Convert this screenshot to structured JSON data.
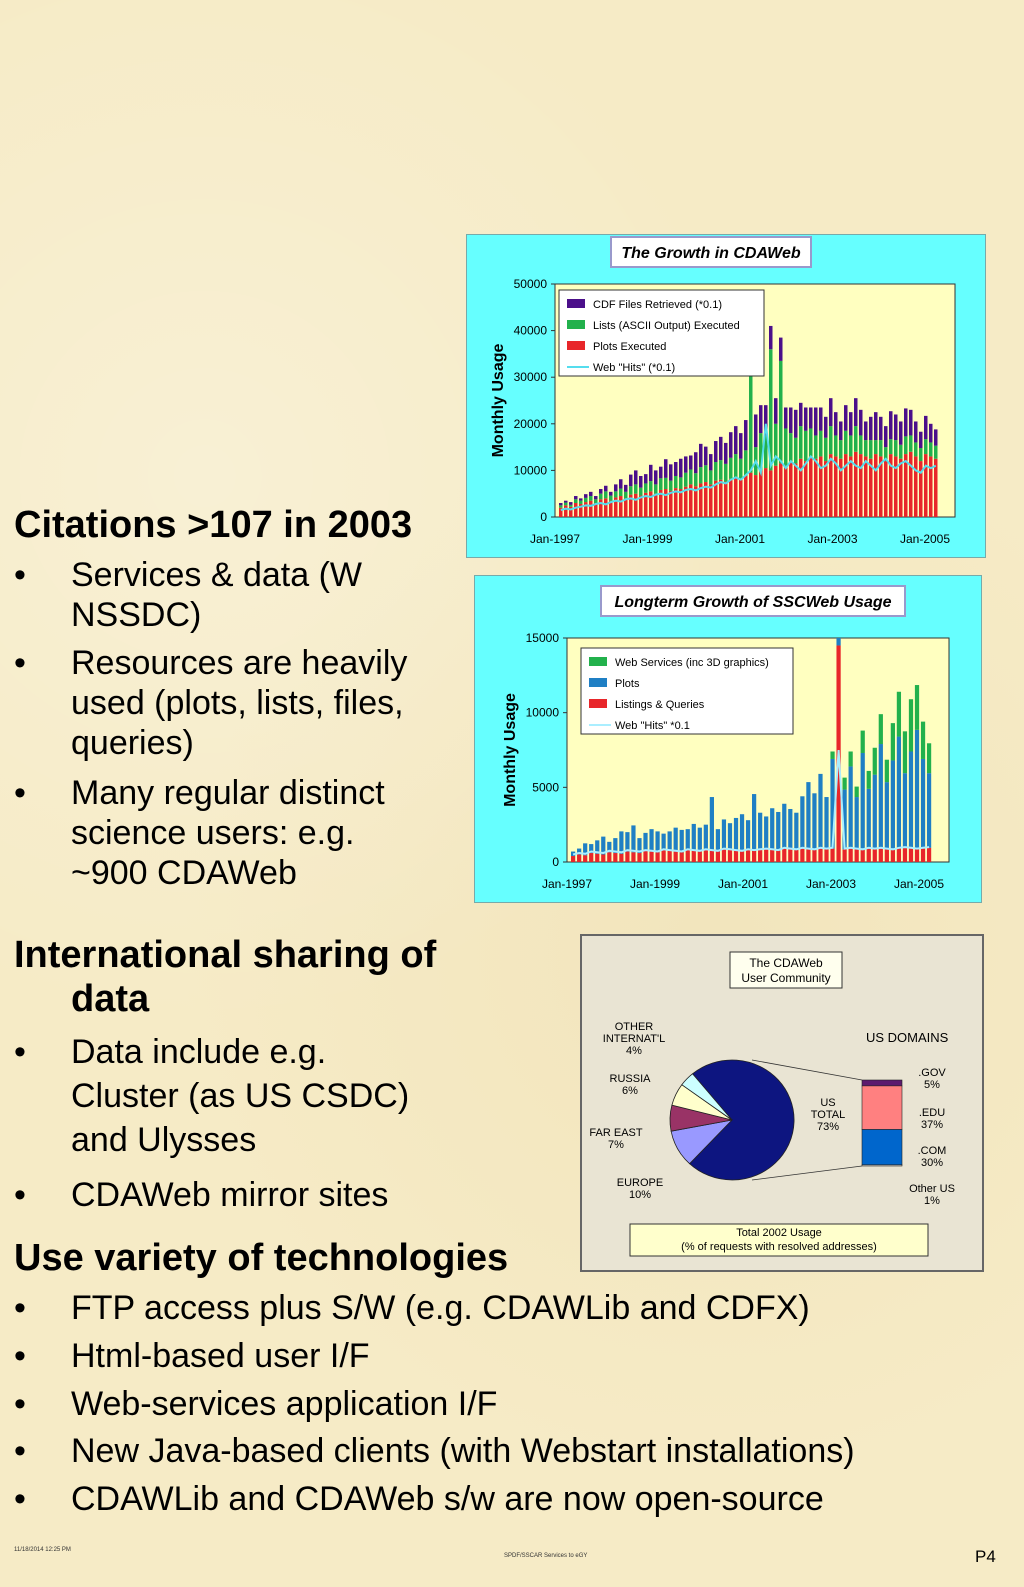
{
  "sections": [
    {
      "heading_lines": [
        "Citations >107 in 2003"
      ],
      "bullets": [
        {
          "lines": [
            "Services & data (W",
            "NSSDC)"
          ]
        },
        {
          "lines": [
            "Resources are heavily",
            "used (plots, lists, files,",
            "queries)"
          ]
        },
        {
          "lines": [
            "Many regular distinct",
            "science users:  e.g.",
            "~900 CDAWeb"
          ]
        }
      ]
    },
    {
      "heading_lines": [
        "International sharing of",
        "data"
      ],
      "bullets": [
        {
          "lines": [
            "Data include e.g.",
            "Cluster (as US CSDC)",
            "and Ulysses"
          ]
        },
        {
          "lines": [
            "CDAWeb mirror sites"
          ]
        }
      ]
    },
    {
      "heading_lines": [
        "Use variety of technologies"
      ],
      "bullets": [
        {
          "lines": [
            "FTP access plus S/W (e.g. CDAWLib and CDFX)"
          ]
        },
        {
          "lines": [
            "Html-based user I/F"
          ]
        },
        {
          "lines": [
            "Web-services application I/F"
          ]
        },
        {
          "lines": [
            "New Java-based clients (with Webstart installations)"
          ]
        },
        {
          "lines": [
            "CDAWLib and CDAWeb s/w are now open-source"
          ]
        }
      ]
    }
  ],
  "bullet_char": "•",
  "footer": {
    "left": "11/18/2014 12:25 PM",
    "center": "SPDF/SSCAR Services to eGY",
    "right": "P4"
  },
  "chart_data": [
    {
      "type": "bar",
      "title": "The Growth in CDAWeb",
      "ylabel": "Monthly Usage",
      "xlabel": "",
      "ylim": [
        0,
        50000
      ],
      "yticks": [
        "0",
        "10000",
        "20000",
        "30000",
        "40000",
        "50000"
      ],
      "xticks": [
        "Jan-1997",
        "Jan-1999",
        "Jan-2001",
        "Jan-2003",
        "Jan-2005"
      ],
      "legend": [
        "CDF Files Retrieved (*0.1)",
        "Lists (ASCII Output) Executed",
        "Plots Executed",
        "Web \"Hits\" (*0.1)"
      ],
      "legend_position": "top-left",
      "colors": {
        "plots": "#e8262a",
        "lists": "#22b14c",
        "files": "#4b0f8a",
        "hits": "#55ddee",
        "plot_bg": "#ffffc0",
        "bg": "#66ffff"
      },
      "series": [
        {
          "name": "Plots Executed",
          "values": [
            2000,
            2500,
            2200,
            3000,
            2800,
            3200,
            3500,
            3000,
            3800,
            4000,
            3500,
            4200,
            4500,
            4000,
            4800,
            5000,
            4600,
            5200,
            5500,
            5000,
            5800,
            6000,
            5600,
            6200,
            6000,
            6500,
            7000,
            6600,
            7200,
            7500,
            7000,
            7800,
            8000,
            7600,
            8200,
            8500,
            8000,
            8800,
            9500,
            9000,
            10000,
            10500,
            10000,
            11000,
            11500,
            11000,
            12000,
            11500,
            12500,
            12000,
            13000,
            12500,
            13000,
            12000,
            13500,
            13000,
            12500,
            13500,
            13000,
            14000,
            13500,
            13000,
            12500,
            13500,
            13000,
            12000,
            13500,
            13000,
            12500,
            13500,
            14000,
            13000,
            12000,
            13500,
            13000,
            12500
          ]
        },
        {
          "name": "Lists (ASCII Output) Executed",
          "values": [
            500,
            600,
            400,
            800,
            700,
            900,
            1000,
            800,
            1200,
            1500,
            1100,
            1300,
            1600,
            1400,
            1800,
            2000,
            1700,
            2000,
            2200,
            2000,
            2500,
            2400,
            2200,
            2600,
            2500,
            3000,
            3200,
            2800,
            3500,
            3600,
            3000,
            4000,
            4200,
            3800,
            4500,
            5000,
            4500,
            5500,
            25000,
            6000,
            8000,
            7000,
            26000,
            9000,
            22000,
            8000,
            6000,
            5500,
            7000,
            6500,
            6000,
            5000,
            5500,
            5000,
            6000,
            4500,
            4000,
            5000,
            4500,
            5500,
            4000,
            3500,
            4000,
            3000,
            3500,
            3000,
            3200,
            3500,
            3000,
            3800,
            3500,
            3000,
            2800,
            3200,
            3000,
            2800
          ]
        },
        {
          "name": "CDF Files Retrieved (*0.1)",
          "values": [
            500,
            400,
            600,
            700,
            500,
            800,
            900,
            700,
            1000,
            1200,
            800,
            1500,
            2000,
            1500,
            2500,
            3000,
            2500,
            2000,
            3500,
            3000,
            2500,
            4000,
            3500,
            3000,
            4000,
            3500,
            3000,
            4500,
            5000,
            4000,
            3500,
            4500,
            5000,
            4500,
            5500,
            6000,
            5500,
            6500,
            5000,
            7000,
            6000,
            6500,
            5000,
            5500,
            5000,
            4500,
            5500,
            6000,
            5000,
            5000,
            4500,
            6000,
            5000,
            4500,
            6000,
            5000,
            4000,
            5500,
            5000,
            6000,
            5500,
            4000,
            5000,
            6000,
            5000,
            4500,
            6000,
            5500,
            5000,
            6000,
            5500,
            4500,
            3500,
            5000,
            4000,
            3500
          ]
        },
        {
          "name": "Web \"Hits\" (*0.1)",
          "values": [
            1500,
            1800,
            1600,
            2000,
            2200,
            2500,
            2400,
            2800,
            3000,
            2700,
            3200,
            3500,
            3300,
            3800,
            4000,
            3700,
            4200,
            4500,
            4300,
            4800,
            5000,
            4700,
            5200,
            5500,
            5300,
            5800,
            6000,
            5700,
            6200,
            6500,
            6300,
            7000,
            7500,
            7200,
            8000,
            8500,
            8000,
            9000,
            10000,
            12000,
            9500,
            20000,
            11000,
            13000,
            12000,
            10500,
            12000,
            11000,
            10000,
            11500,
            13000,
            12000,
            10500,
            11000,
            12500,
            11500,
            10000,
            11000,
            12000,
            11000,
            10500,
            12000,
            11000,
            10000,
            11500,
            12500,
            11000,
            10500,
            11500,
            12000,
            11000,
            10000,
            9500,
            11000,
            10500,
            11000
          ]
        }
      ]
    },
    {
      "type": "bar",
      "title": "Longterm Growth of SSCWeb Usage",
      "ylabel": "Monthly Usage",
      "xlabel": "",
      "ylim": [
        0,
        15000
      ],
      "yticks": [
        "0",
        "5000",
        "10000",
        "15000"
      ],
      "xticks": [
        "Jan-1997",
        "Jan-1999",
        "Jan-2001",
        "Jan-2003",
        "Jan-2005"
      ],
      "legend": [
        "Web Services (inc 3D graphics)",
        "Plots",
        "Listings & Queries",
        "Web \"Hits\" *0.1"
      ],
      "legend_position": "top-left",
      "colors": {
        "ws": "#22b14c",
        "plots": "#1f7fc4",
        "listings": "#e8262a",
        "hits": "#aaeeff",
        "plot_bg": "#ffffc0",
        "bg": "#66ffff"
      },
      "series": [
        {
          "name": "Listings & Queries",
          "values": [
            400,
            500,
            450,
            600,
            550,
            500,
            650,
            600,
            550,
            700,
            650,
            600,
            750,
            700,
            650,
            800,
            750,
            700,
            650,
            800,
            750,
            700,
            800,
            750,
            700,
            850,
            800,
            750,
            700,
            800,
            750,
            800,
            850,
            800,
            750,
            900,
            850,
            800,
            900,
            850,
            800,
            900,
            850,
            900,
            14500,
            850,
            900,
            850,
            800,
            900,
            850,
            900,
            850,
            800,
            900,
            950,
            900,
            850,
            900,
            950
          ]
        },
        {
          "name": "Plots",
          "values": [
            300,
            400,
            800,
            600,
            900,
            1200,
            700,
            1000,
            1500,
            1300,
            1800,
            1000,
            1200,
            1500,
            1400,
            1100,
            1300,
            1600,
            1500,
            1400,
            1800,
            1600,
            1700,
            3600,
            1500,
            2000,
            1800,
            2200,
            2500,
            2000,
            3800,
            2500,
            2200,
            2800,
            2600,
            3000,
            2700,
            2500,
            3500,
            4500,
            3800,
            5000,
            3500,
            6000,
            3000,
            4000,
            5500,
            3500,
            6500,
            4000,
            5000,
            7000,
            4500,
            6000,
            7500,
            5000,
            6500,
            8000,
            6000,
            5000
          ]
        },
        {
          "name": "Web Services (inc 3D graphics)",
          "values": [
            0,
            0,
            0,
            0,
            0,
            0,
            0,
            0,
            0,
            0,
            0,
            0,
            0,
            0,
            0,
            0,
            0,
            0,
            0,
            0,
            0,
            0,
            0,
            0,
            0,
            0,
            0,
            0,
            0,
            0,
            0,
            0,
            0,
            0,
            0,
            0,
            0,
            0,
            0,
            0,
            0,
            0,
            0,
            500,
            0,
            800,
            1000,
            700,
            1500,
            1200,
            1800,
            2000,
            1500,
            2500,
            3000,
            2800,
            3500,
            3000,
            2500,
            2000
          ]
        },
        {
          "name": "Web \"Hits\" *0.1",
          "values": [
            500,
            600,
            550,
            700,
            650,
            600,
            750,
            700,
            650,
            800,
            750,
            700,
            800,
            750,
            700,
            850,
            800,
            750,
            700,
            850,
            800,
            750,
            850,
            800,
            750,
            900,
            850,
            800,
            750,
            850,
            800,
            850,
            900,
            850,
            800,
            950,
            900,
            850,
            950,
            900,
            850,
            950,
            900,
            950,
            7500,
            900,
            950,
            900,
            850,
            950,
            900,
            950,
            900,
            850,
            950,
            1000,
            950,
            900,
            950,
            1000
          ]
        }
      ]
    },
    {
      "type": "pie",
      "title": "The CDAWeb User Community",
      "caption": [
        "Total 2002 Usage",
        "(% of requests with resolved addresses)"
      ],
      "slices": [
        {
          "label": "US TOTAL",
          "pct": "73%",
          "value": 73,
          "color": "#0d1580"
        },
        {
          "label": "EUROPE",
          "pct": "10%",
          "value": 10,
          "color": "#9999ff"
        },
        {
          "label": "FAR EAST",
          "pct": "7%",
          "value": 7,
          "color": "#993366"
        },
        {
          "label": "RUSSIA",
          "pct": "6%",
          "value": 6,
          "color": "#ffffcc"
        },
        {
          "label": "OTHER INTERNAT'L",
          "pct": "4%",
          "value": 4,
          "color": "#ccffff"
        }
      ],
      "us_domains_title": "US DOMAINS",
      "us_domains": [
        {
          "label": ".GOV",
          "pct": "5%",
          "value": 5,
          "color": "#5c1a6e"
        },
        {
          "label": ".EDU",
          "pct": "37%",
          "value": 37,
          "color": "#ff8080"
        },
        {
          "label": ".COM",
          "pct": "30%",
          "value": 30,
          "color": "#0066cc"
        },
        {
          "label": "Other US",
          "pct": "1%",
          "value": 1,
          "color": "#d4d0c8"
        }
      ]
    }
  ]
}
